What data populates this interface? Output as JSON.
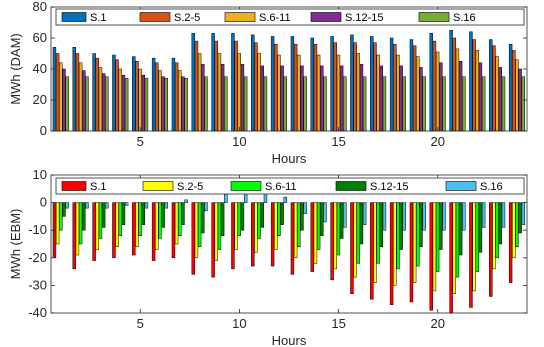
{
  "chart_data": [
    {
      "type": "bar",
      "title": "",
      "xlabel": "Hours",
      "ylabel": "MWh (DAM)",
      "xlim": [
        0.5,
        24.5
      ],
      "ylim": [
        0,
        80
      ],
      "xticks": [
        5,
        10,
        15,
        20
      ],
      "yticks": [
        0,
        20,
        40,
        60,
        80
      ],
      "grid": false,
      "legend_position": "top",
      "categories": [
        1,
        2,
        3,
        4,
        5,
        6,
        7,
        8,
        9,
        10,
        11,
        12,
        13,
        14,
        15,
        16,
        17,
        18,
        19,
        20,
        21,
        22,
        23,
        24
      ],
      "series": [
        {
          "name": "S.1",
          "color": "#0072BD",
          "values": [
            54,
            54,
            50,
            49,
            48,
            47,
            47,
            63,
            63,
            63,
            62,
            61,
            61,
            60,
            61,
            62,
            61,
            60,
            59,
            63,
            65,
            64,
            59,
            56
          ]
        },
        {
          "name": "S.2-5",
          "color": "#D95319",
          "values": [
            50,
            50,
            47,
            46,
            45,
            44,
            44,
            58,
            58,
            58,
            57,
            56,
            56,
            56,
            57,
            57,
            57,
            56,
            55,
            58,
            60,
            59,
            55,
            52
          ]
        },
        {
          "name": "S.6-11",
          "color": "#EDB120",
          "values": [
            44,
            44,
            41,
            40,
            40,
            39,
            39,
            50,
            50,
            50,
            50,
            49,
            49,
            49,
            49,
            50,
            49,
            49,
            48,
            51,
            53,
            52,
            48,
            46
          ]
        },
        {
          "name": "S.12-15",
          "color": "#7E2F8E",
          "values": [
            40,
            39,
            37,
            36,
            36,
            35,
            35,
            43,
            43,
            43,
            42,
            42,
            42,
            42,
            42,
            43,
            42,
            42,
            41,
            44,
            45,
            44,
            41,
            40
          ]
        },
        {
          "name": "S.16",
          "color": "#77AC30",
          "values": [
            35,
            35,
            35,
            34,
            34,
            34,
            34,
            35,
            35,
            35,
            35,
            35,
            35,
            35,
            35,
            35,
            35,
            35,
            35,
            35,
            35,
            35,
            35,
            35
          ]
        }
      ]
    },
    {
      "type": "bar",
      "title": "",
      "xlabel": "Hours",
      "ylabel": "MWh (EBM)",
      "xlim": [
        0.5,
        24.5
      ],
      "ylim": [
        -40,
        10
      ],
      "xticks": [
        5,
        10,
        15,
        20
      ],
      "yticks": [
        -40,
        -30,
        -20,
        -10,
        0,
        10
      ],
      "grid": false,
      "legend_position": "top",
      "categories": [
        1,
        2,
        3,
        4,
        5,
        6,
        7,
        8,
        9,
        10,
        11,
        12,
        13,
        14,
        15,
        16,
        17,
        18,
        19,
        20,
        21,
        22,
        23,
        24
      ],
      "series": [
        {
          "name": "S.1",
          "color": "#FF0000",
          "values": [
            -20,
            -24,
            -21,
            -20,
            -19,
            -21,
            -20,
            -26,
            -27,
            -24,
            -23,
            -23,
            -26,
            -25,
            -28,
            -33,
            -35,
            -37,
            -36,
            -39,
            -40,
            -38,
            -34,
            -29
          ]
        },
        {
          "name": "S.2-5",
          "color": "#FFFF00",
          "values": [
            -15,
            -19,
            -17,
            -16,
            -16,
            -17,
            -15,
            -20,
            -21,
            -17,
            -18,
            -17,
            -20,
            -22,
            -24,
            -27,
            -29,
            -30,
            -29,
            -32,
            -33,
            -32,
            -24,
            -20
          ]
        },
        {
          "name": "S.6-11",
          "color": "#00FF00",
          "values": [
            -10,
            -15,
            -13,
            -12,
            -12,
            -13,
            -12,
            -16,
            -17,
            -12,
            -13,
            -12,
            -16,
            -17,
            -19,
            -22,
            -22,
            -24,
            -23,
            -25,
            -27,
            -25,
            -20,
            -16
          ]
        },
        {
          "name": "S.12-15",
          "color": "#008000",
          "values": [
            -5,
            -10,
            -9,
            -8,
            -8,
            -9,
            -8,
            -11,
            -12,
            -10,
            -9,
            -8,
            -10,
            -12,
            -13,
            -15,
            -16,
            -17,
            -16,
            -17,
            -19,
            -18,
            -15,
            -11
          ]
        },
        {
          "name": "S.16",
          "color": "#4DBEEE",
          "values": [
            -2,
            -2,
            -2,
            -1,
            -2,
            -2,
            1,
            -3,
            3,
            5,
            4,
            2,
            -4,
            -7,
            -9,
            -8,
            -10,
            -10,
            -10,
            -10,
            -10,
            -9,
            -9,
            -8
          ]
        }
      ]
    }
  ]
}
